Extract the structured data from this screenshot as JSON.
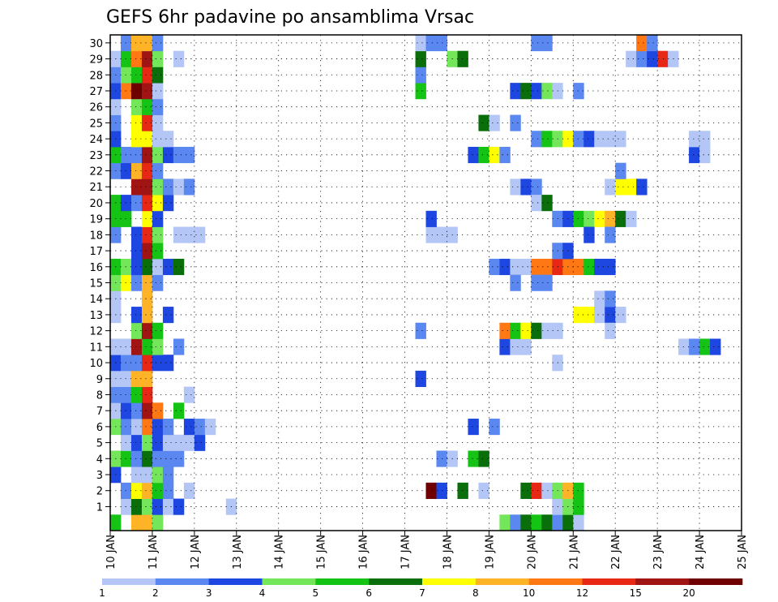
{
  "chart_data": {
    "type": "heatmap",
    "title": "GEFS 6hr padavine po ansamblima Vrsac",
    "xlabel": "",
    "ylabel": "",
    "x_ticks": [
      "10 JAN",
      "11 JAN",
      "12 JAN",
      "13 JAN",
      "14 JAN",
      "15 JAN",
      "16 JAN",
      "17 JAN",
      "18 JAN",
      "19 JAN",
      "20 JAN",
      "21 JAN",
      "22 JAN",
      "23 JAN",
      "24 JAN",
      "25 JAN"
    ],
    "y_ticks": [
      "1",
      "2",
      "3",
      "4",
      "5",
      "6",
      "7",
      "8",
      "9",
      "10",
      "11",
      "12",
      "13",
      "14",
      "15",
      "16",
      "17",
      "18",
      "19",
      "20",
      "21",
      "22",
      "23",
      "24",
      "25",
      "26",
      "27",
      "28",
      "29",
      "30"
    ],
    "x_range_days": [
      10,
      25
    ],
    "time_step_hours": 6,
    "y_range": [
      0,
      30
    ],
    "grid": true,
    "colorbar": {
      "levels": [
        "1",
        "2",
        "3",
        "4",
        "5",
        "6",
        "7",
        "8",
        "10",
        "12",
        "15",
        "20"
      ],
      "colors": [
        "#b3c6f5",
        "#5a87f0",
        "#1e46e0",
        "#73e65a",
        "#14c314",
        "#0a6e0a",
        "#ffff00",
        "#ffb428",
        "#ff7814",
        "#e62814",
        "#a01414",
        "#6e0000"
      ]
    },
    "color_classes": {
      "a": "#b3c6f5",
      "b": "#5a87f0",
      "c": "#1e46e0",
      "d": "#73e65a",
      "e": "#14c314",
      "f": "#0a6e0a",
      "g": "#ffff00",
      "h": "#ffb428",
      "i": "#ff7814",
      "j": "#e62814",
      "k": "#a01414",
      "l": "#6e0000"
    },
    "series": [
      {
        "member": "0",
        "start_step": 0,
        "cells": "e.hhd"
      },
      {
        "member": "1",
        "start_step": 0,
        "cells": ".afdcac....a"
      },
      {
        "member": "2",
        "start_step": 0,
        "cells": ".bgheb.a"
      },
      {
        "member": "3",
        "start_step": 0,
        "cells": "c.aadb"
      },
      {
        "member": "4",
        "start_step": 0,
        "cells": "debfbbb"
      },
      {
        "member": "5",
        "start_step": 0,
        "cells": ".acdcaaac"
      },
      {
        "member": "6",
        "start_step": 0,
        "cells": "dbaicb.cba"
      },
      {
        "member": "7",
        "start_step": 0,
        "cells": "acbki.e"
      },
      {
        "member": "8",
        "start_step": 0,
        "cells": "bbej...a"
      },
      {
        "member": "9",
        "start_step": 0,
        "cells": "aahh"
      },
      {
        "member": "10",
        "start_step": 0,
        "cells": "cbbjcc"
      },
      {
        "member": "11",
        "start_step": 0,
        "cells": "aaked.b"
      },
      {
        "member": "12",
        "start_step": 0,
        "cells": "..dke"
      },
      {
        "member": "13",
        "start_step": 0,
        "cells": "a.ch.c"
      },
      {
        "member": "14",
        "start_step": 0,
        "cells": "a..h"
      },
      {
        "member": "15",
        "start_step": 0,
        "cells": "dgbhb"
      },
      {
        "member": "16",
        "start_step": 0,
        "cells": "edcfacf"
      },
      {
        "member": "17",
        "start_step": 0,
        "cells": "..cke"
      },
      {
        "member": "18",
        "start_step": 0,
        "cells": "b.cjd.aaa"
      },
      {
        "member": "19",
        "start_step": 0,
        "cells": "ee.gc"
      },
      {
        "member": "20",
        "start_step": 0,
        "cells": "ecbjgc"
      },
      {
        "member": "21",
        "start_step": 0,
        "cells": "..kkdbab"
      },
      {
        "member": "22",
        "start_step": 0,
        "cells": "bchjb"
      },
      {
        "member": "23",
        "start_step": 0,
        "cells": "ebbkdcbb"
      },
      {
        "member": "24",
        "start_step": 0,
        "cells": "c.ggaa"
      },
      {
        "member": "25",
        "start_step": 0,
        "cells": "b.gja"
      },
      {
        "member": "26",
        "start_step": 0,
        "cells": "a.deb"
      },
      {
        "member": "27",
        "start_step": 0,
        "cells": "cilka"
      },
      {
        "member": "28",
        "start_step": 0,
        "cells": "bdejf"
      },
      {
        "member": "29",
        "start_step": 0,
        "cells": "aeikd.a"
      },
      {
        "member": "30",
        "start_step": 0,
        "cells": ".bhhb"
      },
      {
        "member": "2",
        "start_step": 30,
        "cells": "lc.f.a"
      },
      {
        "member": "4",
        "start_step": 31,
        "cells": "ba.ef"
      },
      {
        "member": "6",
        "start_step": 34,
        "cells": "c.b"
      },
      {
        "member": "9",
        "start_step": 29,
        "cells": "c"
      },
      {
        "member": "12",
        "start_step": 29,
        "cells": "b"
      },
      {
        "member": "13",
        "start_step": 44,
        "cells": "ggaca"
      },
      {
        "member": "16",
        "start_step": 36,
        "cells": "bcaaiijiiecc"
      },
      {
        "member": "17",
        "start_step": 42,
        "cells": "b"
      },
      {
        "member": "18",
        "start_step": 30,
        "cells": "aaa"
      },
      {
        "member": "19",
        "start_step": 30,
        "cells": "c"
      },
      {
        "member": "19",
        "start_step": 42,
        "cells": "bcedghfa"
      },
      {
        "member": "21",
        "start_step": 38,
        "cells": "acb"
      },
      {
        "member": "21",
        "start_step": 47,
        "cells": "aggc"
      },
      {
        "member": "23",
        "start_step": 34,
        "cells": "cegb"
      },
      {
        "member": "24",
        "start_step": 40,
        "cells": "bedgbcaaa"
      },
      {
        "member": "25",
        "start_step": 35,
        "cells": "fa.b"
      },
      {
        "member": "27",
        "start_step": 29,
        "cells": "e"
      },
      {
        "member": "27",
        "start_step": 38,
        "cells": "cfcda.b"
      },
      {
        "member": "28",
        "start_step": 29,
        "cells": "b"
      },
      {
        "member": "29",
        "start_step": 29,
        "cells": "f"
      },
      {
        "member": "29",
        "start_step": 32,
        "cells": "df"
      },
      {
        "member": "29",
        "start_step": 49,
        "cells": "abcja"
      },
      {
        "member": "30",
        "start_step": 29,
        "cells": "abb"
      },
      {
        "member": "30",
        "start_step": 40,
        "cells": "bb"
      },
      {
        "member": "30",
        "start_step": 50,
        "cells": "ib"
      },
      {
        "member": "0",
        "start_step": 37,
        "cells": "dbfefbfa"
      },
      {
        "member": "1",
        "start_step": 42,
        "cells": "ade"
      },
      {
        "member": "2",
        "start_step": 39,
        "cells": "fjadhe"
      },
      {
        "member": "10",
        "start_step": 42,
        "cells": "a"
      },
      {
        "member": "11",
        "start_step": 37,
        "cells": "caa"
      },
      {
        "member": "11",
        "start_step": 54,
        "cells": "abec"
      },
      {
        "member": "12",
        "start_step": 37,
        "cells": "iegfaa"
      },
      {
        "member": "12",
        "start_step": 47,
        "cells": "a"
      },
      {
        "member": "14",
        "start_step": 46,
        "cells": "ab"
      },
      {
        "member": "15",
        "start_step": 38,
        "cells": "b.bb"
      },
      {
        "member": "17",
        "start_step": 43,
        "cells": "c"
      },
      {
        "member": "18",
        "start_step": 45,
        "cells": "c.b"
      },
      {
        "member": "20",
        "start_step": 40,
        "cells": "af"
      },
      {
        "member": "22",
        "start_step": 48,
        "cells": "b"
      },
      {
        "member": "23",
        "start_step": 55,
        "cells": "ca"
      },
      {
        "member": "24",
        "start_step": 55,
        "cells": "aa"
      }
    ]
  }
}
